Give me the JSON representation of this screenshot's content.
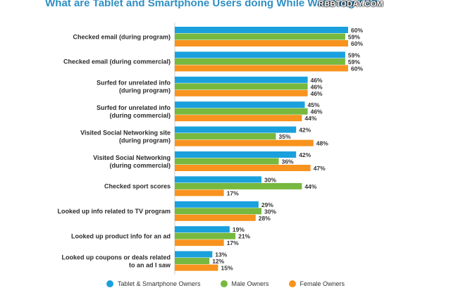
{
  "watermark": "RBBTODAY.COM",
  "chart_data": {
    "type": "bar",
    "orientation": "horizontal",
    "title": "What are Tablet and Smartphone Users doing While Watching TV?",
    "categories": [
      [
        "Checked email (during program)"
      ],
      [
        "Checked email (during commercial)"
      ],
      [
        "Surfed for unrelated info",
        "(during program)"
      ],
      [
        "Surfed for unrelated info",
        "(during commercial)"
      ],
      [
        "Visited Social Networking site",
        "(during program)"
      ],
      [
        "Visited Social Networking",
        "(during commercial)"
      ],
      [
        "Checked sport scores"
      ],
      [
        "Looked up info related to TV program"
      ],
      [
        "Looked up product info for an ad"
      ],
      [
        "Looked up coupons or deals related",
        "to an ad I saw"
      ]
    ],
    "series": [
      {
        "name": "Tablet & Smartphone Owners",
        "color": "#1aa0dd",
        "values": [
          60,
          59,
          46,
          45,
          42,
          42,
          30,
          29,
          19,
          13
        ]
      },
      {
        "name": "Male Owners",
        "color": "#77b83f",
        "values": [
          59,
          59,
          46,
          46,
          35,
          36,
          44,
          30,
          21,
          12
        ]
      },
      {
        "name": "Female Owners",
        "color": "#f7931e",
        "values": [
          60,
          60,
          46,
          44,
          48,
          47,
          17,
          28,
          17,
          15
        ]
      }
    ],
    "value_suffix": "%",
    "grid": false,
    "legend_position": "bottom"
  }
}
